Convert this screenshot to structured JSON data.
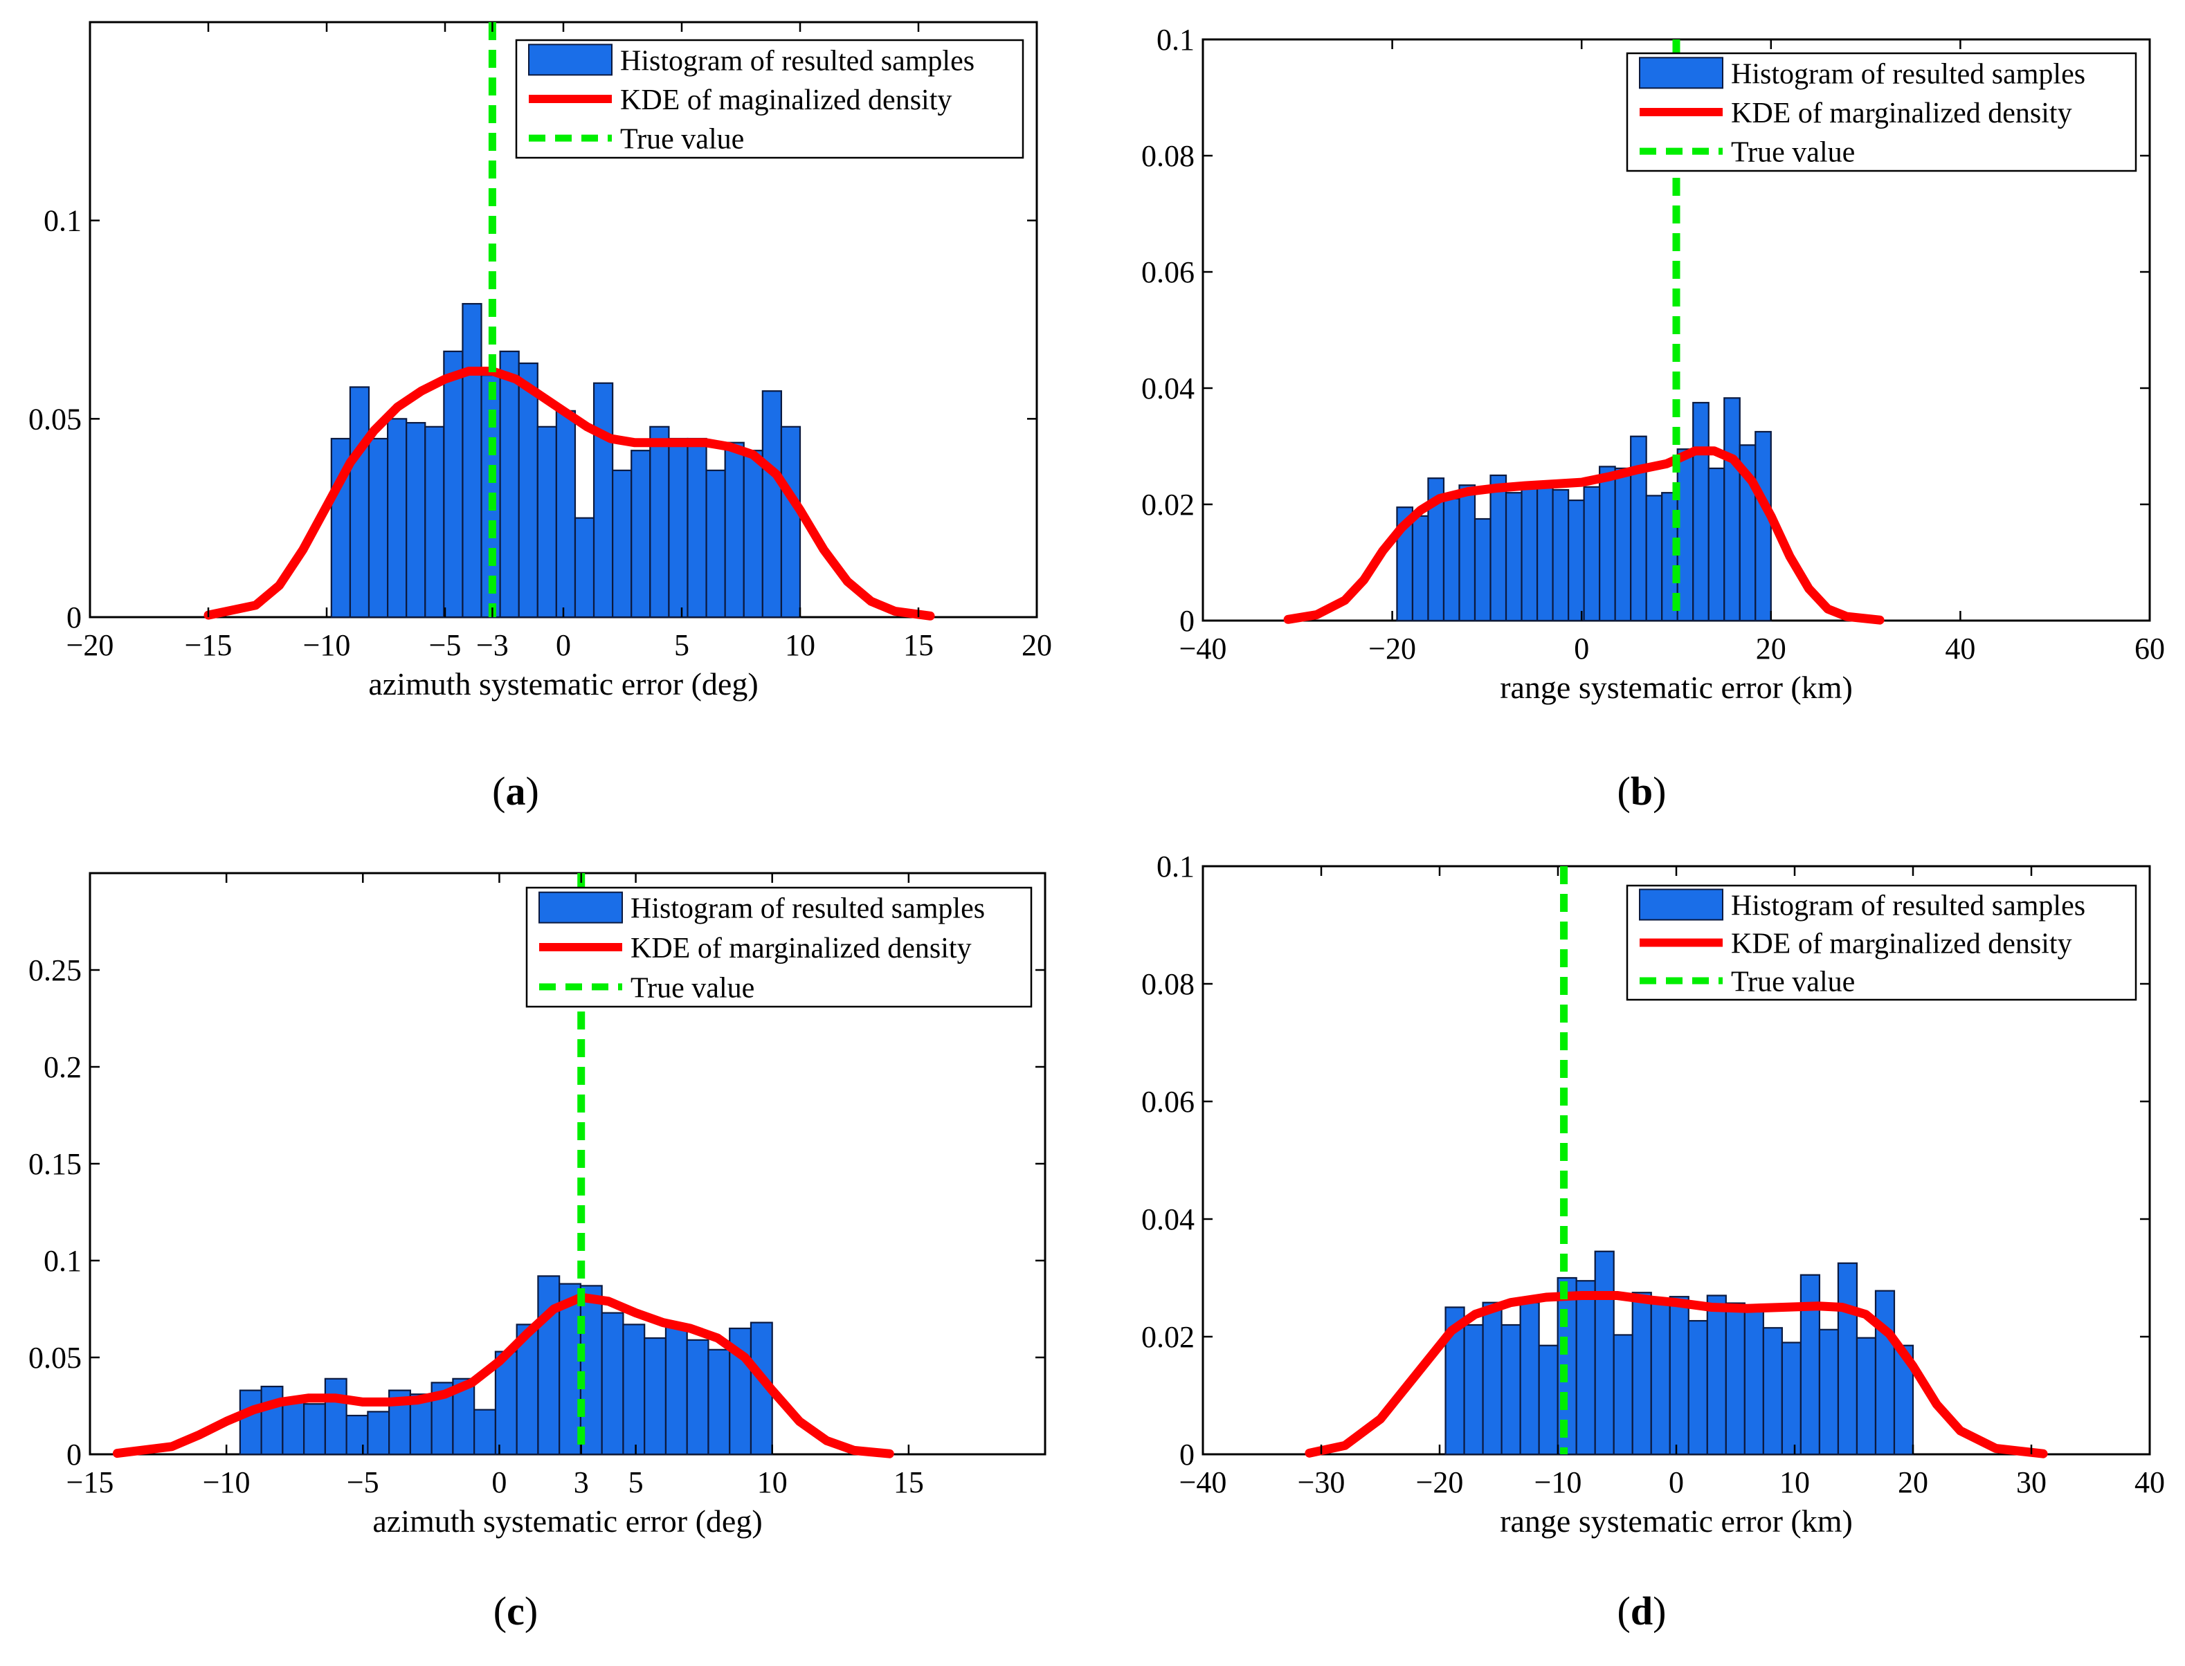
{
  "chart_data": [
    {
      "id": "a",
      "type": "bar",
      "subfigure_label": "a",
      "xlabel": "azimuth systematic error (deg)",
      "ylabel": "",
      "xlim": [
        -20,
        20
      ],
      "ylim": [
        0,
        0.15
      ],
      "xticks": [
        -20,
        -15,
        -10,
        -5,
        -3,
        0,
        5,
        10,
        15,
        20
      ],
      "xtick_labels": [
        "−20",
        "−15",
        "−10",
        "−5",
        "−3",
        "0",
        "5",
        "10",
        "15",
        "20"
      ],
      "yticks": [
        0,
        0.05,
        0.1
      ],
      "ytick_labels": [
        "0",
        "0.05",
        "0.1"
      ],
      "legend": [
        "Histogram of resulted samples",
        "KDE of maginalized density",
        "True value"
      ],
      "legend_position": "top-right",
      "true_value": -3,
      "hist_range": [
        -9.8,
        10
      ],
      "histogram": [
        0.045,
        0.058,
        0.045,
        0.05,
        0.049,
        0.048,
        0.067,
        0.079,
        0.061,
        0.067,
        0.064,
        0.048,
        0.052,
        0.025,
        0.059,
        0.037,
        0.042,
        0.048,
        0.045,
        0.045,
        0.037,
        0.044,
        0.042,
        0.057,
        0.048
      ],
      "kde_x": [
        -15,
        -13,
        -12,
        -11,
        -10,
        -9,
        -8,
        -7,
        -6,
        -5,
        -4,
        -3,
        -2,
        -1,
        0,
        1,
        2,
        3,
        4,
        5,
        6,
        7,
        8,
        9,
        10,
        11,
        12,
        13,
        14,
        15.5
      ],
      "kde_y": [
        0.0005,
        0.003,
        0.008,
        0.017,
        0.028,
        0.039,
        0.047,
        0.053,
        0.057,
        0.06,
        0.062,
        0.062,
        0.06,
        0.056,
        0.052,
        0.048,
        0.045,
        0.044,
        0.044,
        0.044,
        0.044,
        0.043,
        0.041,
        0.036,
        0.027,
        0.017,
        0.009,
        0.004,
        0.0015,
        0.0003
      ]
    },
    {
      "id": "b",
      "type": "bar",
      "subfigure_label": "b",
      "xlabel": "range systematic error (km)",
      "ylabel": "",
      "xlim": [
        -40,
        60
      ],
      "ylim": [
        0,
        0.1
      ],
      "xticks": [
        -40,
        -20,
        0,
        20,
        40,
        60
      ],
      "xtick_labels": [
        "−40",
        "−20",
        "0",
        "20",
        "40",
        "60"
      ],
      "yticks": [
        0,
        0.02,
        0.04,
        0.06,
        0.08,
        0.1
      ],
      "ytick_labels": [
        "0",
        "0.02",
        "0.04",
        "0.06",
        "0.08",
        "0.1"
      ],
      "legend": [
        "Histogram of resulted samples",
        "KDE of marginalized density",
        "True value"
      ],
      "legend_position": "top-right",
      "true_value": 10,
      "hist_range": [
        -19.5,
        20
      ],
      "histogram": [
        0.0195,
        0.018,
        0.0245,
        0.021,
        0.0233,
        0.0175,
        0.025,
        0.022,
        0.0237,
        0.0237,
        0.0225,
        0.0207,
        0.023,
        0.0265,
        0.0262,
        0.0317,
        0.0215,
        0.022,
        0.0295,
        0.0375,
        0.0262,
        0.0383,
        0.0302,
        0.0325
      ],
      "kde_x": [
        -31,
        -28,
        -25,
        -23,
        -21,
        -19,
        -17,
        -15,
        -12,
        -9,
        -6,
        -3,
        0,
        3,
        6,
        9,
        12,
        14,
        16,
        18,
        20,
        22,
        24,
        26,
        28,
        31.5
      ],
      "kde_y": [
        0.0002,
        0.001,
        0.0035,
        0.007,
        0.012,
        0.016,
        0.019,
        0.021,
        0.0222,
        0.0228,
        0.0232,
        0.0235,
        0.0238,
        0.0248,
        0.026,
        0.027,
        0.0292,
        0.0292,
        0.0278,
        0.024,
        0.018,
        0.011,
        0.0055,
        0.002,
        0.0007,
        0.0001
      ]
    },
    {
      "id": "c",
      "type": "bar",
      "subfigure_label": "c",
      "xlabel": "azimuth systematic error (deg)",
      "ylabel": "",
      "xlim": [
        -15,
        20
      ],
      "ylim": [
        0,
        0.3
      ],
      "xticks": [
        -15,
        -10,
        -5,
        0,
        3,
        5,
        10,
        15
      ],
      "xtick_labels": [
        "−15",
        "−10",
        "−5",
        "0",
        "3",
        "5",
        "10",
        "15"
      ],
      "yticks": [
        0,
        0.05,
        0.1,
        0.15,
        0.2,
        0.25
      ],
      "ytick_labels": [
        "0",
        "0.05",
        "0.1",
        "0.15",
        "0.2",
        "0.25"
      ],
      "legend": [
        "Histogram of resulted samples",
        "KDE of marginalized density",
        "True value"
      ],
      "legend_position": "top-right",
      "true_value": 3,
      "hist_range": [
        -9.5,
        10
      ],
      "histogram": [
        0.033,
        0.035,
        0.028,
        0.026,
        0.039,
        0.02,
        0.022,
        0.033,
        0.031,
        0.037,
        0.039,
        0.023,
        0.053,
        0.067,
        0.092,
        0.088,
        0.087,
        0.073,
        0.067,
        0.06,
        0.067,
        0.059,
        0.054,
        0.065,
        0.068
      ],
      "kde_x": [
        -14,
        -12,
        -11,
        -10,
        -9,
        -8,
        -7,
        -6,
        -5,
        -4,
        -3,
        -2,
        -1,
        0,
        1,
        2,
        3,
        4,
        5,
        6,
        7,
        8,
        9,
        10,
        11,
        12,
        13,
        14.3
      ],
      "kde_y": [
        0.0005,
        0.004,
        0.01,
        0.017,
        0.023,
        0.027,
        0.029,
        0.029,
        0.027,
        0.027,
        0.028,
        0.031,
        0.037,
        0.048,
        0.062,
        0.075,
        0.081,
        0.079,
        0.073,
        0.068,
        0.065,
        0.06,
        0.05,
        0.033,
        0.017,
        0.007,
        0.002,
        0.0003
      ]
    },
    {
      "id": "d",
      "type": "bar",
      "subfigure_label": "d",
      "xlabel": "range systematic error (km)",
      "ylabel": "",
      "xlim": [
        -40,
        40
      ],
      "ylim": [
        0,
        0.1
      ],
      "xticks": [
        -40,
        -30,
        -20,
        -10,
        0,
        10,
        20,
        30,
        40
      ],
      "xtick_labels": [
        "−40",
        "−30",
        "−20",
        "−10",
        "0",
        "10",
        "20",
        "30",
        "40"
      ],
      "yticks": [
        0,
        0.02,
        0.04,
        0.06,
        0.08,
        0.1
      ],
      "ytick_labels": [
        "0",
        "0.02",
        "0.04",
        "0.06",
        "0.08",
        "0.1"
      ],
      "legend": [
        "Histogram of resulted samples",
        "KDE of marginalized density",
        "True value"
      ],
      "legend_position": "top-right",
      "true_value": -9.5,
      "hist_range": [
        -19.5,
        20
      ],
      "histogram": [
        0.025,
        0.022,
        0.0258,
        0.022,
        0.0258,
        0.0185,
        0.03,
        0.0295,
        0.0345,
        0.0203,
        0.0275,
        0.026,
        0.0268,
        0.0227,
        0.027,
        0.0257,
        0.0243,
        0.0215,
        0.019,
        0.0305,
        0.0212,
        0.0325,
        0.0198,
        0.0278,
        0.0185
      ],
      "kde_x": [
        -31,
        -28,
        -25,
        -23,
        -21,
        -19,
        -17,
        -14,
        -11,
        -8,
        -5,
        -2,
        0,
        3,
        6,
        9,
        12,
        14,
        16,
        18,
        20,
        22,
        24,
        27,
        31
      ],
      "kde_y": [
        0.0002,
        0.0015,
        0.006,
        0.011,
        0.016,
        0.021,
        0.0238,
        0.0258,
        0.0267,
        0.027,
        0.027,
        0.0262,
        0.0258,
        0.025,
        0.0248,
        0.025,
        0.0252,
        0.025,
        0.0238,
        0.0205,
        0.015,
        0.0085,
        0.004,
        0.001,
        0.0001
      ]
    }
  ]
}
